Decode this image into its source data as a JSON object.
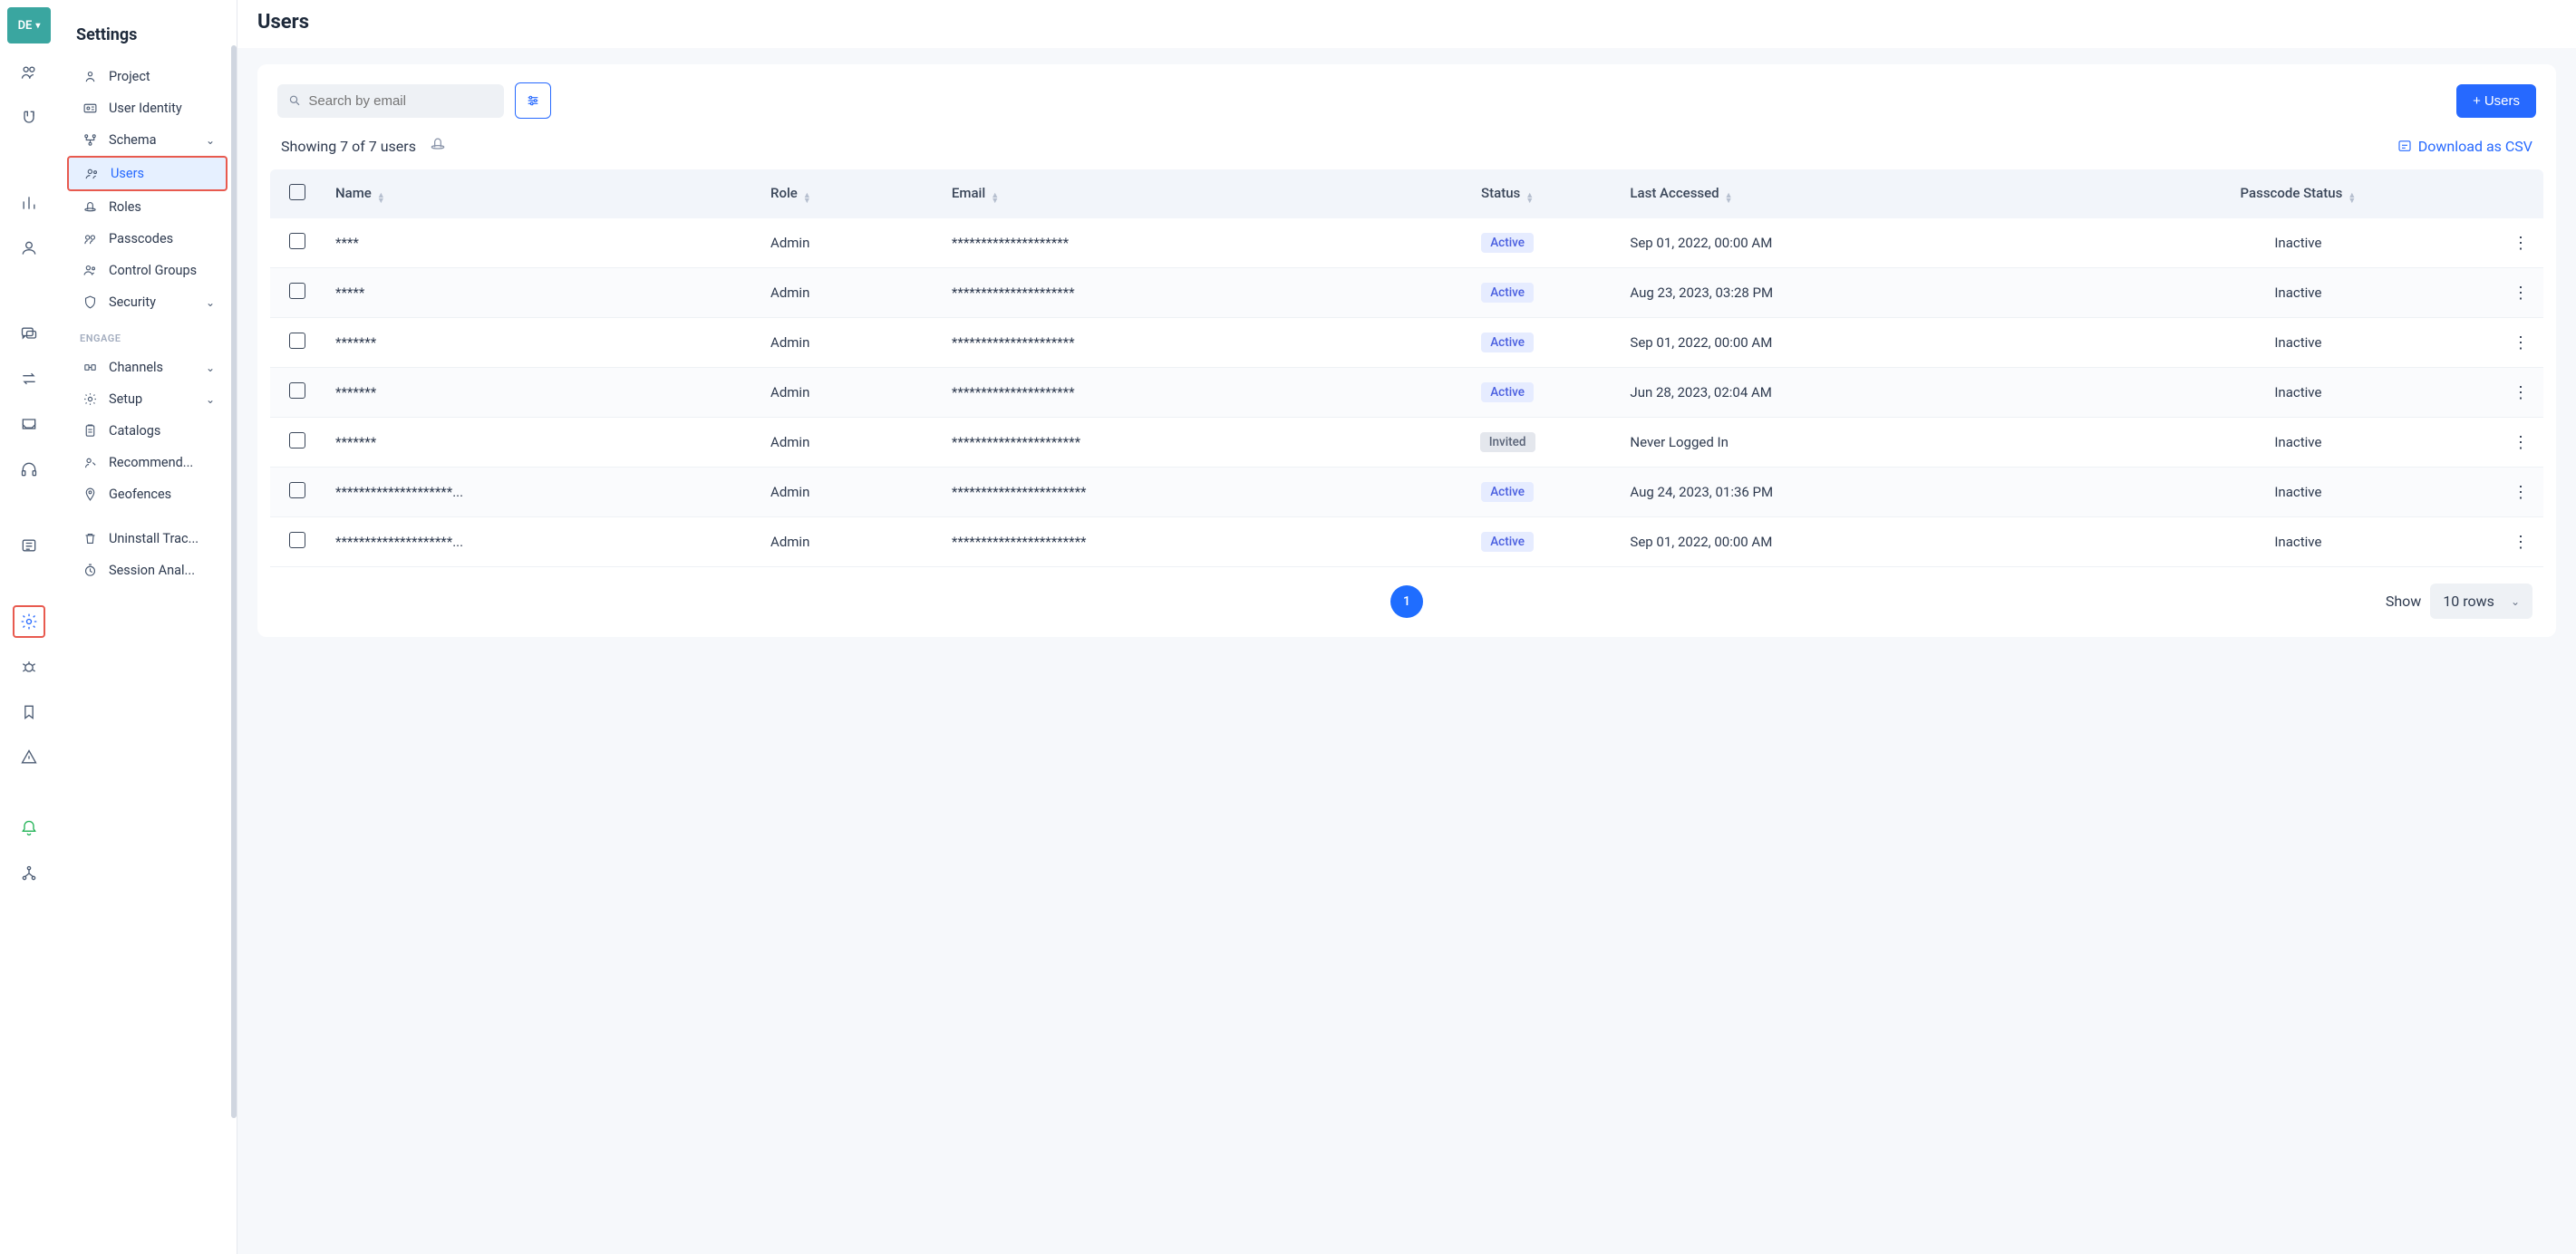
{
  "rail": {
    "badge": "DE"
  },
  "sidebar": {
    "title": "Settings",
    "items": [
      {
        "label": "Project"
      },
      {
        "label": "User Identity"
      },
      {
        "label": "Schema",
        "expandable": true
      },
      {
        "label": "Users",
        "active": true
      },
      {
        "label": "Roles"
      },
      {
        "label": "Passcodes"
      },
      {
        "label": "Control Groups"
      },
      {
        "label": "Security",
        "expandable": true
      }
    ],
    "engage_heading": "ENGAGE",
    "engage_items": [
      {
        "label": "Channels",
        "expandable": true
      },
      {
        "label": "Setup",
        "expandable": true
      },
      {
        "label": "Catalogs"
      },
      {
        "label": "Recommend..."
      },
      {
        "label": "Geofences"
      },
      {
        "label": "Uninstall Trac..."
      },
      {
        "label": "Session Anal..."
      }
    ]
  },
  "page": {
    "title": "Users",
    "search_placeholder": "Search by email",
    "add_button": "Users",
    "summary": "Showing 7 of 7 users",
    "download": "Download as CSV",
    "columns": {
      "name": "Name",
      "role": "Role",
      "email": "Email",
      "status": "Status",
      "last": "Last Accessed",
      "passcode": "Passcode Status"
    },
    "rows": [
      {
        "name": "****",
        "role": "Admin",
        "email": "********************",
        "status": "Active",
        "last": "Sep 01, 2022, 00:00 AM",
        "passcode": "Inactive"
      },
      {
        "name": "*****",
        "role": "Admin",
        "email": "*********************",
        "status": "Active",
        "last": "Aug 23, 2023, 03:28 PM",
        "passcode": "Inactive"
      },
      {
        "name": "*******",
        "role": "Admin",
        "email": "*********************",
        "status": "Active",
        "last": "Sep 01, 2022, 00:00 AM",
        "passcode": "Inactive"
      },
      {
        "name": "*******",
        "role": "Admin",
        "email": "*********************",
        "status": "Active",
        "last": "Jun 28, 2023, 02:04 AM",
        "passcode": "Inactive"
      },
      {
        "name": "*******",
        "role": "Admin",
        "email": "**********************",
        "status": "Invited",
        "last": "Never Logged In",
        "passcode": "Inactive"
      },
      {
        "name": "********************...",
        "role": "Admin",
        "email": "***********************",
        "status": "Active",
        "last": "Aug 24, 2023, 01:36 PM",
        "passcode": "Inactive"
      },
      {
        "name": "********************...",
        "role": "Admin",
        "email": "***********************",
        "status": "Active",
        "last": "Sep 01, 2022, 00:00 AM",
        "passcode": "Inactive"
      }
    ],
    "pager": "1",
    "show_label": "Show",
    "show_value": "10 rows"
  }
}
